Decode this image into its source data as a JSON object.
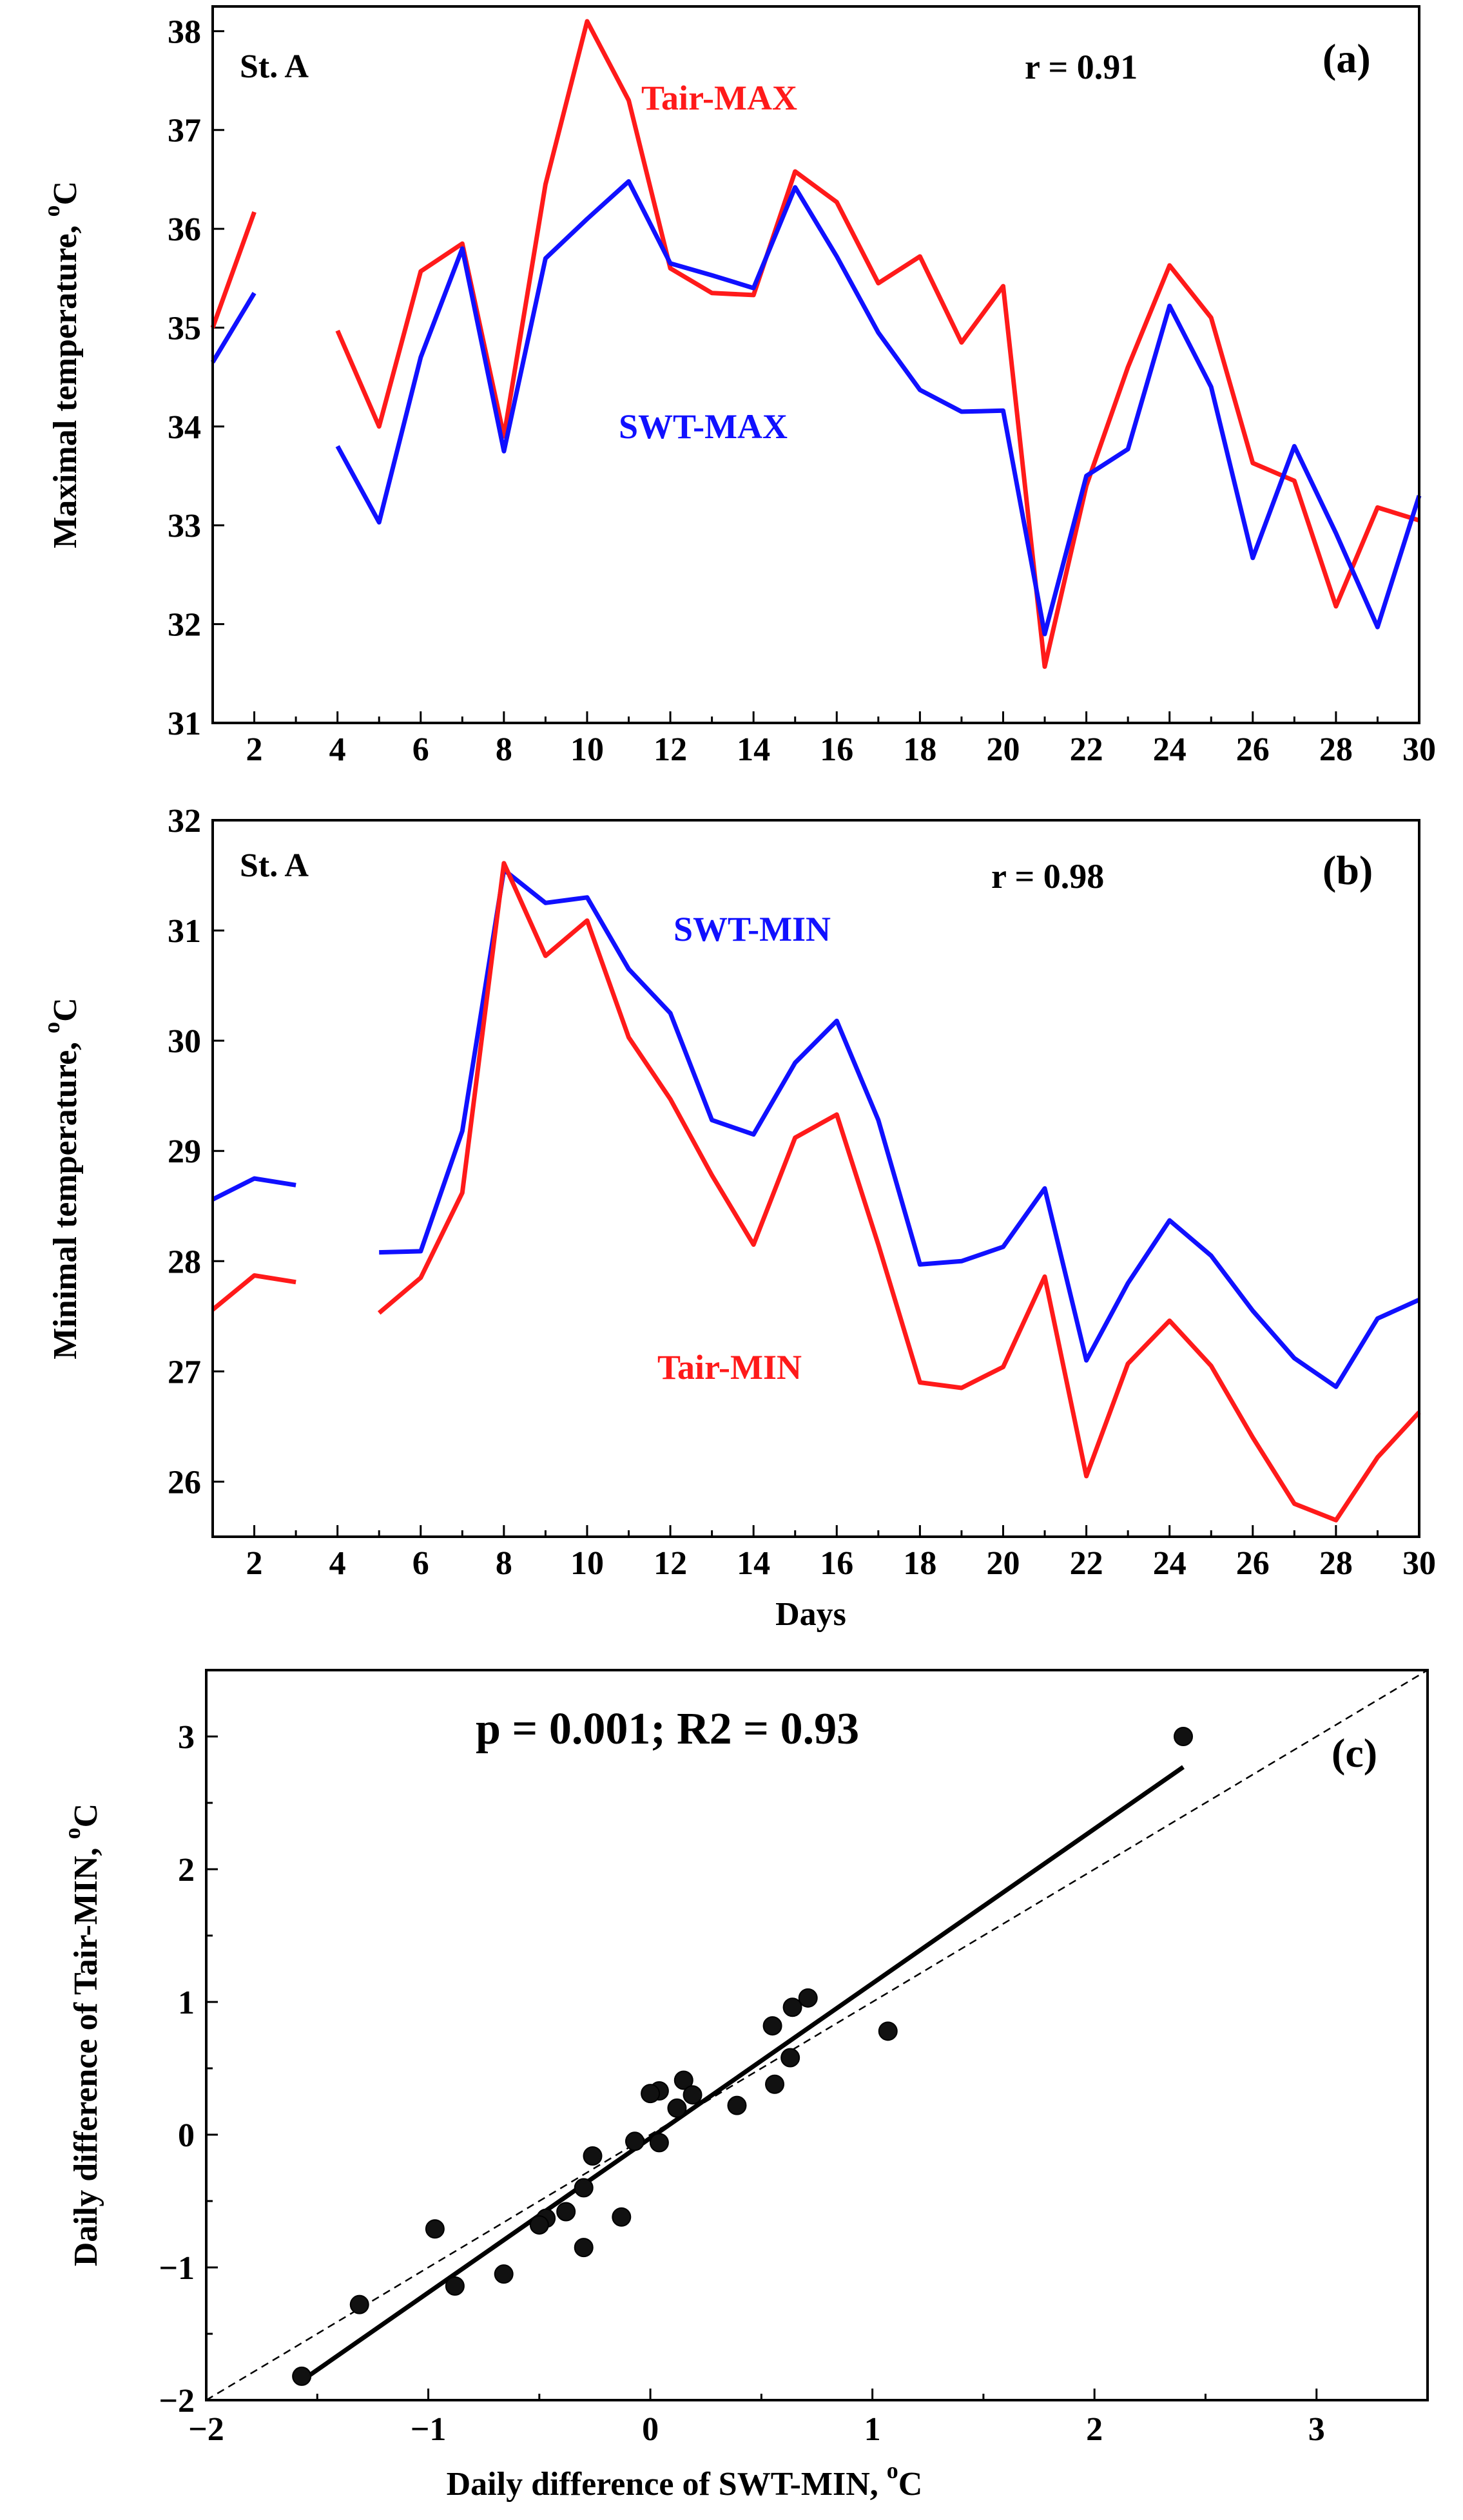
{
  "chart_data": [
    {
      "type": "line",
      "panel": "(a)",
      "station": "St. A",
      "annotation": "r = 0.91",
      "ylabel": "Maximal  temperature,",
      "ylabel_unit_sup": "o",
      "ylabel_unit": "C",
      "xlabel": "",
      "xlim": [
        1,
        30
      ],
      "ylim": [
        31,
        38.25
      ],
      "x_ticks": [
        2,
        4,
        6,
        8,
        10,
        12,
        14,
        16,
        18,
        20,
        22,
        24,
        26,
        28,
        30
      ],
      "y_ticks": [
        31,
        32,
        33,
        34,
        35,
        36,
        37,
        38
      ],
      "x": [
        1,
        2,
        3,
        4,
        5,
        6,
        7,
        8,
        9,
        10,
        11,
        12,
        13,
        14,
        15,
        16,
        17,
        18,
        19,
        20,
        21,
        22,
        23,
        24,
        25,
        26,
        27,
        28,
        29,
        30
      ],
      "series": [
        {
          "name": "Tair-MAX",
          "color": "#ff1a1a",
          "values": [
            35.0,
            36.17,
            null,
            34.97,
            34.0,
            35.57,
            35.85,
            33.9,
            36.45,
            38.1,
            37.3,
            35.6,
            35.35,
            35.33,
            36.58,
            36.27,
            35.45,
            35.72,
            34.85,
            35.42,
            31.57,
            33.4,
            34.6,
            35.63,
            35.1,
            33.63,
            33.45,
            32.18,
            33.18,
            33.05
          ]
        },
        {
          "name": "SWT-MAX",
          "color": "#1010ff",
          "values": [
            34.65,
            35.35,
            null,
            33.8,
            33.03,
            34.7,
            35.8,
            33.75,
            35.7,
            36.1,
            36.48,
            35.65,
            35.53,
            35.4,
            36.42,
            35.72,
            34.95,
            34.37,
            34.15,
            34.16,
            31.9,
            33.5,
            33.77,
            35.22,
            34.4,
            32.67,
            33.8,
            32.92,
            31.97,
            33.3
          ]
        }
      ]
    },
    {
      "type": "line",
      "panel": "(b)",
      "station": "St. A",
      "annotation": "r = 0.98",
      "ylabel": "Minimal  temperature,",
      "ylabel_unit_sup": "o",
      "ylabel_unit": "C",
      "xlabel": "Days",
      "xlim": [
        1,
        30
      ],
      "ylim": [
        25.5,
        32
      ],
      "x_ticks": [
        2,
        4,
        6,
        8,
        10,
        12,
        14,
        16,
        18,
        20,
        22,
        24,
        26,
        28,
        30
      ],
      "y_ticks": [
        26,
        27,
        28,
        29,
        30,
        31,
        32
      ],
      "x": [
        1,
        2,
        3,
        4,
        5,
        6,
        7,
        8,
        9,
        10,
        11,
        12,
        13,
        14,
        15,
        16,
        17,
        18,
        19,
        20,
        21,
        22,
        23,
        24,
        25,
        26,
        27,
        28,
        29,
        30
      ],
      "series": [
        {
          "name": "SWT-MIN",
          "color": "#1010ff",
          "values": [
            28.56,
            28.75,
            28.69,
            null,
            28.08,
            28.09,
            29.18,
            31.55,
            31.25,
            31.3,
            30.65,
            30.25,
            29.28,
            29.15,
            29.8,
            30.18,
            29.28,
            27.97,
            28.0,
            28.13,
            28.66,
            27.1,
            27.8,
            28.37,
            28.05,
            27.55,
            27.12,
            26.86,
            27.48,
            27.65
          ]
        },
        {
          "name": "Tair-MIN",
          "color": "#ff1a1a",
          "values": [
            27.56,
            27.87,
            27.81,
            null,
            27.53,
            27.85,
            28.62,
            31.61,
            30.77,
            31.09,
            30.03,
            29.47,
            28.78,
            28.15,
            29.12,
            29.33,
            28.15,
            26.9,
            26.85,
            27.04,
            27.86,
            26.05,
            27.07,
            27.46,
            27.05,
            26.4,
            25.8,
            25.65,
            26.22,
            26.63
          ]
        }
      ]
    },
    {
      "type": "scatter",
      "panel": "(c)",
      "annotation": "p = 0.001;  R2 = 0.93",
      "xlabel": "Daily difference of SWT-MIN,",
      "xlabel_unit_sup": "o",
      "xlabel_unit": "C",
      "ylabel": "Daily difference of Tair-MIN,",
      "ylabel_unit_sup": "o",
      "ylabel_unit": "C",
      "xlim": [
        -2,
        3.5
      ],
      "ylim": [
        -2,
        3.5
      ],
      "x_ticks": [
        -2,
        -1,
        0,
        1,
        2,
        3
      ],
      "y_ticks": [
        -2,
        -1,
        0,
        1,
        2,
        3
      ],
      "points": [
        [
          2.4,
          3.0
        ],
        [
          1.07,
          0.78
        ],
        [
          0.71,
          1.03
        ],
        [
          0.64,
          0.96
        ],
        [
          0.55,
          0.82
        ],
        [
          0.63,
          0.58
        ],
        [
          0.56,
          0.38
        ],
        [
          0.39,
          0.22
        ],
        [
          0.15,
          0.41
        ],
        [
          0.19,
          0.3
        ],
        [
          0.12,
          0.2
        ],
        [
          0.04,
          0.33
        ],
        [
          0.0,
          0.31
        ],
        [
          0.04,
          -0.06
        ],
        [
          -0.07,
          -0.05
        ],
        [
          -0.26,
          -0.16
        ],
        [
          -0.3,
          -0.4
        ],
        [
          -0.38,
          -0.58
        ],
        [
          -0.47,
          -0.63
        ],
        [
          -0.5,
          -0.68
        ],
        [
          -0.13,
          -0.62
        ],
        [
          -0.3,
          -0.85
        ],
        [
          -0.66,
          -1.05
        ],
        [
          -0.97,
          -0.71
        ],
        [
          -0.88,
          -1.14
        ],
        [
          -1.31,
          -1.28
        ],
        [
          -1.57,
          -1.82
        ]
      ],
      "fit_line": [
        [
          -1.55,
          -1.83
        ],
        [
          2.4,
          2.77
        ]
      ],
      "reference_line": [
        [
          -2,
          -2
        ],
        [
          3.5,
          3.5
        ]
      ]
    }
  ]
}
